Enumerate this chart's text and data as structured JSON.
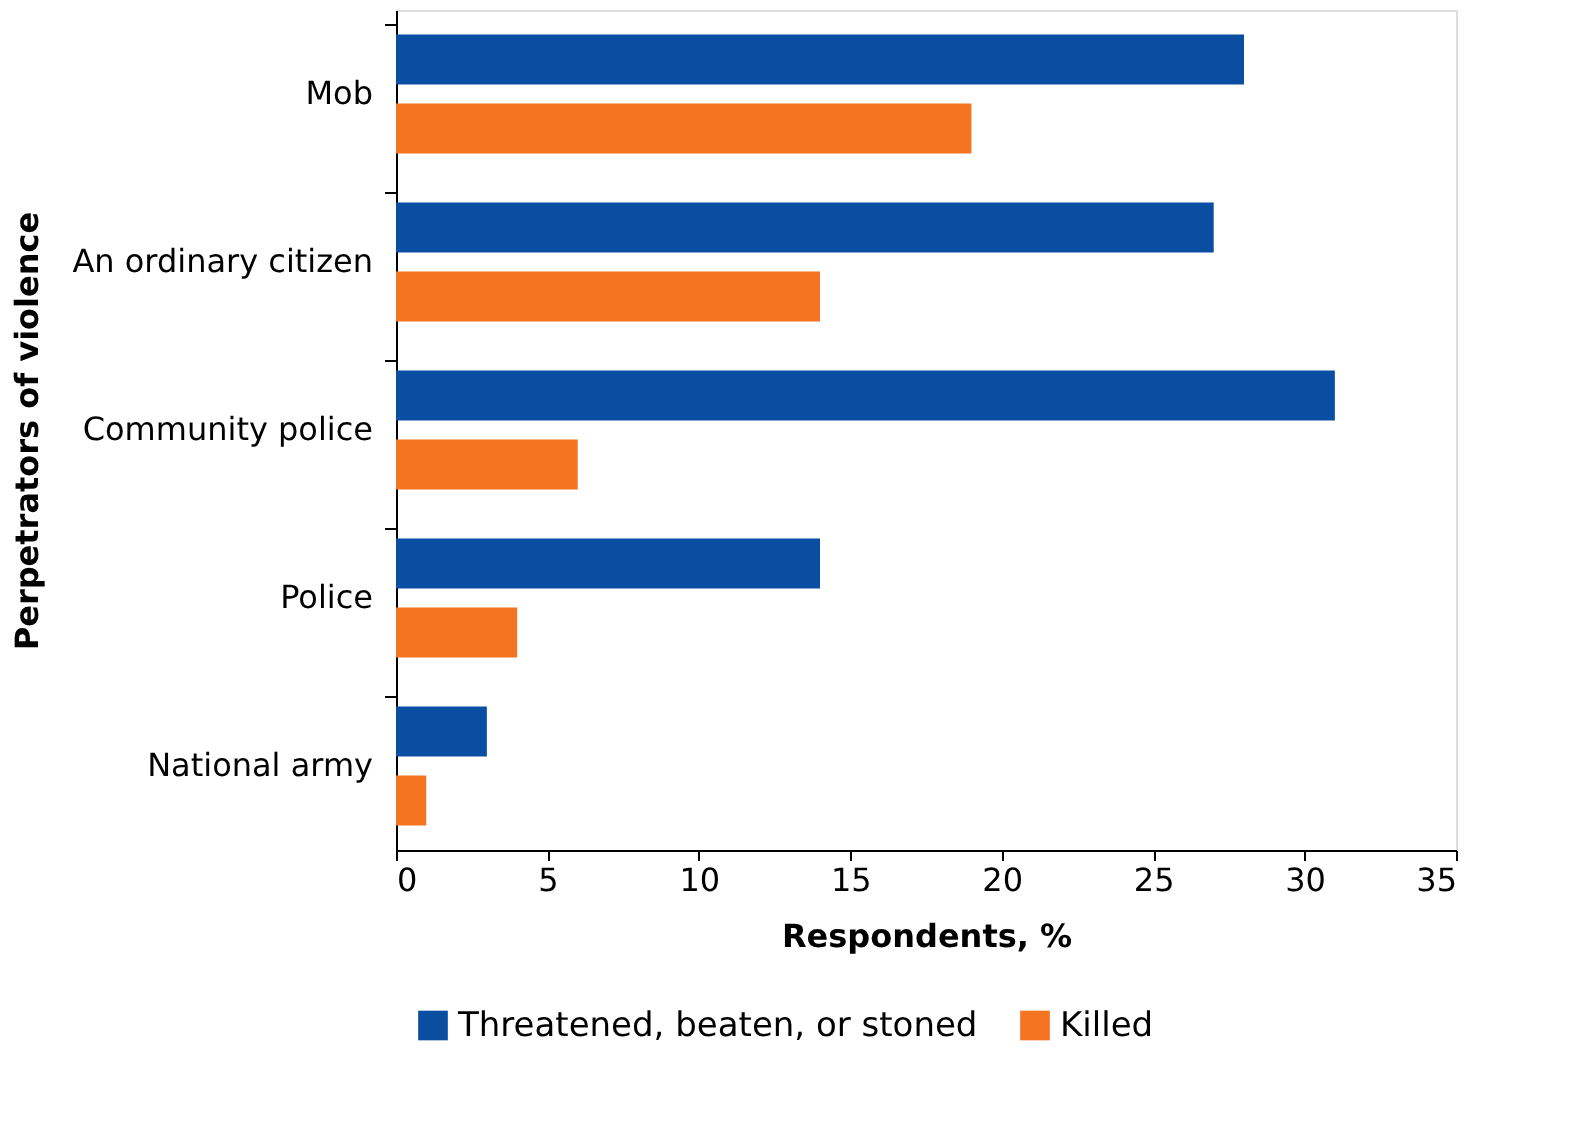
{
  "chart_data": {
    "type": "bar",
    "orientation": "horizontal",
    "xlabel": "Respondents, %",
    "ylabel": "Perpetrators of violence",
    "categories": [
      "Mob",
      "An ordinary citizen",
      "Community police",
      "Police",
      "National army"
    ],
    "series": [
      {
        "name": "Threatened, beaten, or stoned",
        "color": "#0a4ea2",
        "values": [
          28,
          27,
          31,
          14,
          3
        ]
      },
      {
        "name": "Killed",
        "color": "#f47421",
        "values": [
          19,
          14,
          6,
          4,
          1
        ]
      }
    ],
    "xlim": [
      0,
      35
    ],
    "xticks": [
      0,
      5,
      10,
      15,
      20,
      25,
      30,
      35
    ],
    "grid": false,
    "legend": "bottom"
  }
}
